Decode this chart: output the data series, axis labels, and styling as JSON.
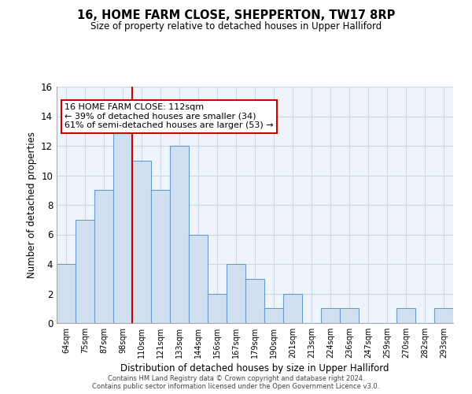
{
  "title": "16, HOME FARM CLOSE, SHEPPERTON, TW17 8RP",
  "subtitle": "Size of property relative to detached houses in Upper Halliford",
  "xlabel": "Distribution of detached houses by size in Upper Halliford",
  "ylabel": "Number of detached properties",
  "bar_labels": [
    "64sqm",
    "75sqm",
    "87sqm",
    "98sqm",
    "110sqm",
    "121sqm",
    "133sqm",
    "144sqm",
    "156sqm",
    "167sqm",
    "179sqm",
    "190sqm",
    "201sqm",
    "213sqm",
    "224sqm",
    "236sqm",
    "247sqm",
    "259sqm",
    "270sqm",
    "282sqm",
    "293sqm"
  ],
  "bar_values": [
    4,
    7,
    9,
    13,
    11,
    9,
    12,
    6,
    2,
    4,
    3,
    1,
    2,
    0,
    1,
    1,
    0,
    0,
    1,
    0,
    1
  ],
  "bar_color": "#d0e0f0",
  "bar_edge_color": "#6699cc",
  "red_line_index": 4,
  "red_line_color": "#cc0000",
  "annotation_text": "16 HOME FARM CLOSE: 112sqm\n← 39% of detached houses are smaller (34)\n61% of semi-detached houses are larger (53) →",
  "annotation_box_color": "#ffffff",
  "annotation_box_edge_color": "#cc0000",
  "ylim": [
    0,
    16
  ],
  "yticks": [
    0,
    2,
    4,
    6,
    8,
    10,
    12,
    14,
    16
  ],
  "footer_text": "Contains HM Land Registry data © Crown copyright and database right 2024.\nContains public sector information licensed under the Open Government Licence v3.0.",
  "grid_color": "#c8d8e8",
  "bg_color": "#eef4fa",
  "background_color": "#ffffff"
}
